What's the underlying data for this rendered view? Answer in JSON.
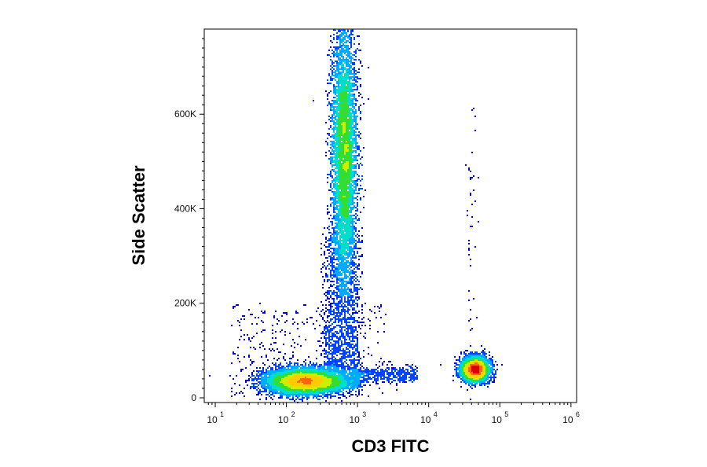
{
  "chart_data": {
    "type": "scatter",
    "subtype": "flow-cytometry-density-plot",
    "xlabel": "CD3 FITC",
    "ylabel": "Side Scatter",
    "x_scale": "log",
    "xlim": [
      7,
      1200000
    ],
    "ylim": [
      -10000,
      780000
    ],
    "x_ticks": [
      {
        "base": "10",
        "exp": "1",
        "value": 10
      },
      {
        "base": "10",
        "exp": "2",
        "value": 100
      },
      {
        "base": "10",
        "exp": "3",
        "value": 1000
      },
      {
        "base": "10",
        "exp": "4",
        "value": 10000
      },
      {
        "base": "10",
        "exp": "5",
        "value": 100000
      },
      {
        "base": "10",
        "exp": "6",
        "value": 1000000
      }
    ],
    "y_ticks": [
      {
        "label": "0",
        "value": 0
      },
      {
        "label": "200K",
        "value": 200000
      },
      {
        "label": "400K",
        "value": 400000
      },
      {
        "label": "600K",
        "value": 600000
      }
    ],
    "grid": false,
    "colormap": [
      "#0000cc",
      "#0044ff",
      "#00aaff",
      "#00ddcc",
      "#33dd33",
      "#ccee00",
      "#ffcc00",
      "#ff6600",
      "#dd0000"
    ],
    "populations": [
      {
        "name_hint": "CD3-negative low SSC",
        "x_center": 180,
        "y_center": 35000,
        "x_log_spread": 0.28,
        "y_spread": 14000,
        "share": 0.28
      },
      {
        "name_hint": "CD3-negative high SSC",
        "x_center": 650,
        "y_center": 520000,
        "x_log_spread": 0.09,
        "y_spread": 140000,
        "share": 0.46
      },
      {
        "name_hint": "CD3-positive",
        "x_center": 45000,
        "y_center": 60000,
        "x_log_spread": 0.1,
        "y_spread": 13000,
        "share": 0.14
      }
    ]
  }
}
